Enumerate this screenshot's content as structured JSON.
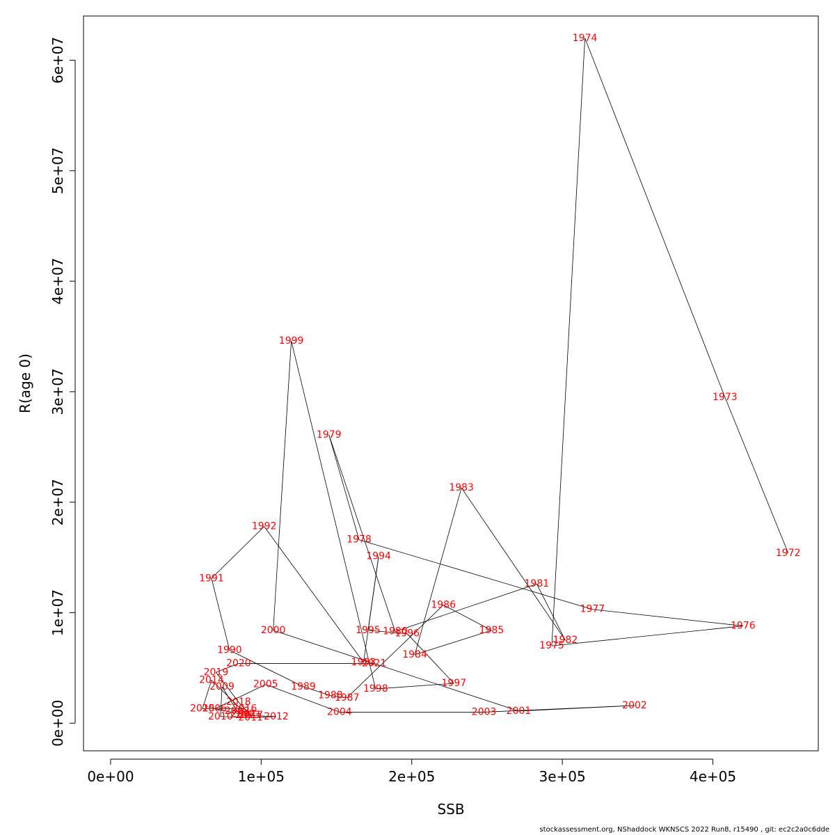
{
  "chart_data": {
    "type": "line",
    "xlabel": "SSB",
    "ylabel": "R(age 0)",
    "xlim": [
      -18000,
      470000
    ],
    "ylim": [
      -2500000,
      64000000
    ],
    "xticks": [
      0,
      100000,
      200000,
      300000,
      400000
    ],
    "xtick_labels": [
      "0e+00",
      "1e+05",
      "2e+05",
      "3e+05",
      "4e+05"
    ],
    "yticks": [
      0,
      10000000,
      20000000,
      30000000,
      40000000,
      50000000,
      60000000
    ],
    "ytick_labels": [
      "0e+00",
      "1e+07",
      "2e+07",
      "3e+07",
      "4e+07",
      "5e+07",
      "6e+07"
    ],
    "points": [
      {
        "year": "1972",
        "x": 450000,
        "y": 15400000
      },
      {
        "year": "1973",
        "x": 408000,
        "y": 29500000
      },
      {
        "year": "1974",
        "x": 315000,
        "y": 62000000
      },
      {
        "year": "1975",
        "x": 293000,
        "y": 7000000
      },
      {
        "year": "1976",
        "x": 420000,
        "y": 8800000
      },
      {
        "year": "1977",
        "x": 320000,
        "y": 10300000
      },
      {
        "year": "1978",
        "x": 165000,
        "y": 16600000
      },
      {
        "year": "1979",
        "x": 145000,
        "y": 26100000
      },
      {
        "year": "1980",
        "x": 189000,
        "y": 8300000
      },
      {
        "year": "1981",
        "x": 283000,
        "y": 12600000
      },
      {
        "year": "1982",
        "x": 302000,
        "y": 7500000
      },
      {
        "year": "1983",
        "x": 233000,
        "y": 21300000
      },
      {
        "year": "1984",
        "x": 202000,
        "y": 6200000
      },
      {
        "year": "1985",
        "x": 253000,
        "y": 8400000
      },
      {
        "year": "1986",
        "x": 221000,
        "y": 10700000
      },
      {
        "year": "1987",
        "x": 157000,
        "y": 2300000
      },
      {
        "year": "1988",
        "x": 146000,
        "y": 2500000
      },
      {
        "year": "1989",
        "x": 128000,
        "y": 3300000
      },
      {
        "year": "1990",
        "x": 79000,
        "y": 6600000
      },
      {
        "year": "1991",
        "x": 67000,
        "y": 13100000
      },
      {
        "year": "1992",
        "x": 102000,
        "y": 17800000
      },
      {
        "year": "1993",
        "x": 168000,
        "y": 5500000
      },
      {
        "year": "1994",
        "x": 178000,
        "y": 15100000
      },
      {
        "year": "1995",
        "x": 171000,
        "y": 8400000
      },
      {
        "year": "1996",
        "x": 197000,
        "y": 8100000
      },
      {
        "year": "1997",
        "x": 228000,
        "y": 3600000
      },
      {
        "year": "1998",
        "x": 176000,
        "y": 3100000
      },
      {
        "year": "1999",
        "x": 120000,
        "y": 34600000
      },
      {
        "year": "2000",
        "x": 108000,
        "y": 8400000
      },
      {
        "year": "2001",
        "x": 271000,
        "y": 1100000
      },
      {
        "year": "2002",
        "x": 348000,
        "y": 1600000
      },
      {
        "year": "2003",
        "x": 248000,
        "y": 1000000
      },
      {
        "year": "2004",
        "x": 152000,
        "y": 1000000
      },
      {
        "year": "2005",
        "x": 103000,
        "y": 3500000
      },
      {
        "year": "2006",
        "x": 69000,
        "y": 1300000
      },
      {
        "year": "2007",
        "x": 88000,
        "y": 800000
      },
      {
        "year": "2008",
        "x": 84000,
        "y": 1100000
      },
      {
        "year": "2009",
        "x": 74000,
        "y": 3300000
      },
      {
        "year": "2010",
        "x": 73000,
        "y": 600000
      },
      {
        "year": "2011",
        "x": 93000,
        "y": 500000
      },
      {
        "year": "2012",
        "x": 110000,
        "y": 600000
      },
      {
        "year": "2013",
        "x": 91000,
        "y": 700000
      },
      {
        "year": "2014",
        "x": 67000,
        "y": 3900000
      },
      {
        "year": "2015",
        "x": 61000,
        "y": 1300000
      },
      {
        "year": "2016",
        "x": 89000,
        "y": 1300000
      },
      {
        "year": "2017",
        "x": 93000,
        "y": 700000
      },
      {
        "year": "2018",
        "x": 85000,
        "y": 1900000
      },
      {
        "year": "2019",
        "x": 70000,
        "y": 4600000
      },
      {
        "year": "2020",
        "x": 85000,
        "y": 5400000
      },
      {
        "year": "2021",
        "x": 175000,
        "y": 5400000
      }
    ]
  },
  "footer": {
    "text": "stockassessment.org, NShaddock  WKNSCS  2022  Run8, r15490 , git: ec2c2a0c6dde"
  }
}
